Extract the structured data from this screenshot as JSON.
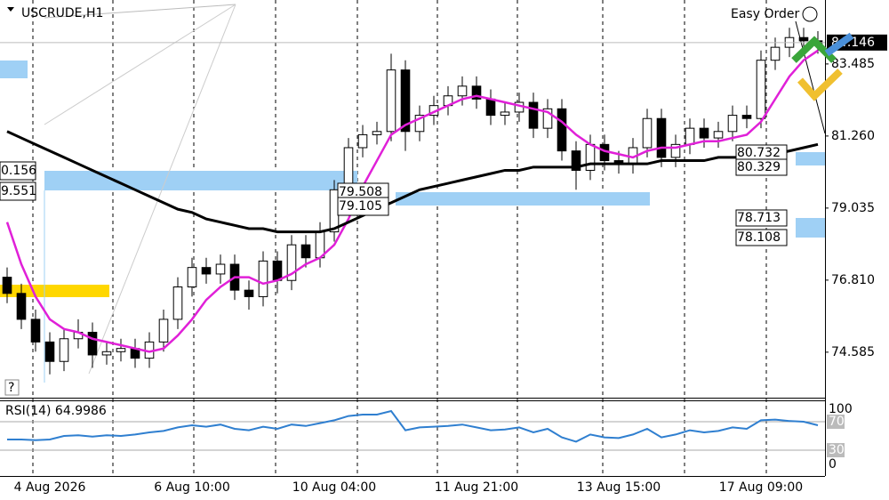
{
  "chart_data": [
    {
      "type": "candlestick",
      "title": "USCRUDE,H1",
      "tool": "Easy Order",
      "categories": [
        null,
        null,
        null,
        "4 Aug 2026",
        null,
        null,
        null,
        null,
        null,
        null,
        null,
        null,
        null,
        "6 Aug 10:00",
        null,
        null,
        null,
        null,
        null,
        null,
        null,
        null,
        null,
        "10 Aug 04:00",
        null,
        null,
        null,
        null,
        null,
        null,
        null,
        null,
        null,
        "11 Aug 21:00",
        null,
        null,
        null,
        null,
        null,
        null,
        null,
        null,
        null,
        "13 Aug 15:00",
        null,
        null,
        null,
        null,
        null,
        null,
        null,
        null,
        null,
        "17 Aug 09:00",
        null,
        null,
        null,
        null
      ],
      "open": [
        76.9,
        76.4,
        75.6,
        74.9,
        74.3,
        75.0,
        75.2,
        74.5,
        74.6,
        74.7,
        74.4,
        74.9,
        75.6,
        76.6,
        77.2,
        77.0,
        77.3,
        76.5,
        76.3,
        77.4,
        76.8,
        77.9,
        77.5,
        78.3,
        79.6,
        80.9,
        81.3,
        81.4,
        83.3,
        81.4,
        81.9,
        82.2,
        82.5,
        82.8,
        82.4,
        81.9,
        82.0,
        82.3,
        81.5,
        82.1,
        80.8,
        80.2,
        81.0,
        80.5,
        80.4,
        80.9,
        81.8,
        80.6,
        81.0,
        81.5,
        81.2,
        81.4,
        81.9,
        81.8,
        83.6,
        84.0,
        84.3,
        84.2
      ],
      "high": [
        77.2,
        76.7,
        75.9,
        75.2,
        75.3,
        75.6,
        75.5,
        74.9,
        75.0,
        75.0,
        75.2,
        75.9,
        76.9,
        77.5,
        77.5,
        77.6,
        77.6,
        76.8,
        77.7,
        77.7,
        78.2,
        78.2,
        78.6,
        79.9,
        81.2,
        81.6,
        81.7,
        83.8,
        83.6,
        82.2,
        82.5,
        82.8,
        83.1,
        83.1,
        82.7,
        82.3,
        82.6,
        82.6,
        82.4,
        82.4,
        81.1,
        81.3,
        81.3,
        80.8,
        81.2,
        82.1,
        82.1,
        81.3,
        81.8,
        81.8,
        81.7,
        82.2,
        82.2,
        83.9,
        84.3,
        84.6,
        84.6,
        84.5
      ],
      "low": [
        76.1,
        75.3,
        74.6,
        73.9,
        74.0,
        74.7,
        74.1,
        74.2,
        74.3,
        74.1,
        74.1,
        74.6,
        75.3,
        76.3,
        76.7,
        76.7,
        76.2,
        75.9,
        76.0,
        76.4,
        76.5,
        77.2,
        77.2,
        78.0,
        79.3,
        80.6,
        81.0,
        81.1,
        80.8,
        81.1,
        81.6,
        81.9,
        82.2,
        82.1,
        81.6,
        81.6,
        81.7,
        81.2,
        81.2,
        80.5,
        79.6,
        79.9,
        80.2,
        80.1,
        80.1,
        80.6,
        80.3,
        80.3,
        80.7,
        80.9,
        80.9,
        81.1,
        81.5,
        81.5,
        83.3,
        83.7,
        83.9,
        83.8
      ],
      "close": [
        76.4,
        75.6,
        74.9,
        74.3,
        75.0,
        75.2,
        74.5,
        74.6,
        74.7,
        74.4,
        74.9,
        75.6,
        76.6,
        77.2,
        77.0,
        77.3,
        76.5,
        76.3,
        77.4,
        76.8,
        77.9,
        77.5,
        78.3,
        79.6,
        80.9,
        81.3,
        81.4,
        83.3,
        81.4,
        81.9,
        82.2,
        82.5,
        82.8,
        82.4,
        81.9,
        82.0,
        82.3,
        81.5,
        82.1,
        80.8,
        80.2,
        81.0,
        80.5,
        80.4,
        80.9,
        81.8,
        80.6,
        81.0,
        81.5,
        81.2,
        81.4,
        81.9,
        81.8,
        83.6,
        84.0,
        84.3,
        84.2,
        84.1
      ],
      "up_color": "#ffffff",
      "down_color": "#000000",
      "overlays": [
        {
          "color": "#e020d8",
          "values": [
            78.6,
            77.3,
            76.3,
            75.6,
            75.3,
            75.2,
            75.0,
            74.9,
            74.8,
            74.7,
            74.6,
            74.7,
            75.1,
            75.6,
            76.2,
            76.6,
            76.9,
            76.9,
            76.7,
            76.8,
            77.0,
            77.3,
            77.5,
            77.9,
            78.7,
            79.7,
            80.5,
            81.3,
            81.6,
            81.8,
            82.0,
            82.2,
            82.4,
            82.5,
            82.4,
            82.3,
            82.2,
            82.1,
            82.0,
            81.7,
            81.3,
            81.0,
            80.8,
            80.7,
            80.6,
            80.8,
            80.9,
            80.9,
            81.0,
            81.1,
            81.1,
            81.2,
            81.3,
            81.7,
            82.4,
            83.1,
            83.6,
            83.9
          ]
        },
        {
          "color": "#000000",
          "values": [
            81.4,
            81.2,
            81.0,
            80.8,
            80.6,
            80.4,
            80.2,
            80.0,
            79.8,
            79.6,
            79.4,
            79.2,
            79.0,
            78.9,
            78.7,
            78.6,
            78.5,
            78.4,
            78.4,
            78.3,
            78.3,
            78.3,
            78.3,
            78.4,
            78.6,
            78.8,
            79.0,
            79.2,
            79.4,
            79.6,
            79.7,
            79.8,
            79.9,
            80.0,
            80.1,
            80.2,
            80.2,
            80.3,
            80.3,
            80.3,
            80.3,
            80.4,
            80.4,
            80.4,
            80.4,
            80.4,
            80.5,
            80.5,
            80.5,
            80.5,
            80.6,
            80.6,
            80.6,
            80.7,
            80.7,
            80.8,
            80.9,
            81.0
          ]
        }
      ],
      "last_price": 84.146,
      "price_tags": [
        "0.156",
        "9.551",
        "79.508",
        "79.105",
        "80.732",
        "80.329",
        "78.713",
        "78.108"
      ],
      "ylim": [
        73.18,
        85.46
      ],
      "yticks": [
        74.585,
        {
          "value": 76.81,
          "label": "76.810"
        },
        79.035,
        {
          "value": 81.26,
          "label": "81.260"
        },
        83.485
      ]
    },
    {
      "type": "line",
      "title": "RSI(14) 64.9986",
      "color": "#2f7fd0",
      "values": [
        45,
        45,
        44,
        45,
        50,
        51,
        49,
        51,
        50,
        52,
        55,
        57,
        62,
        65,
        63,
        66,
        60,
        58,
        63,
        60,
        66,
        64,
        68,
        72,
        78,
        80,
        80,
        85,
        58,
        62,
        63,
        64,
        66,
        62,
        58,
        59,
        62,
        55,
        60,
        48,
        42,
        52,
        48,
        47,
        52,
        60,
        48,
        52,
        58,
        55,
        57,
        62,
        60,
        72,
        73,
        71,
        70,
        65
      ],
      "ylim": [
        0,
        100
      ],
      "yticks": [
        0,
        30,
        70,
        100
      ]
    }
  ]
}
